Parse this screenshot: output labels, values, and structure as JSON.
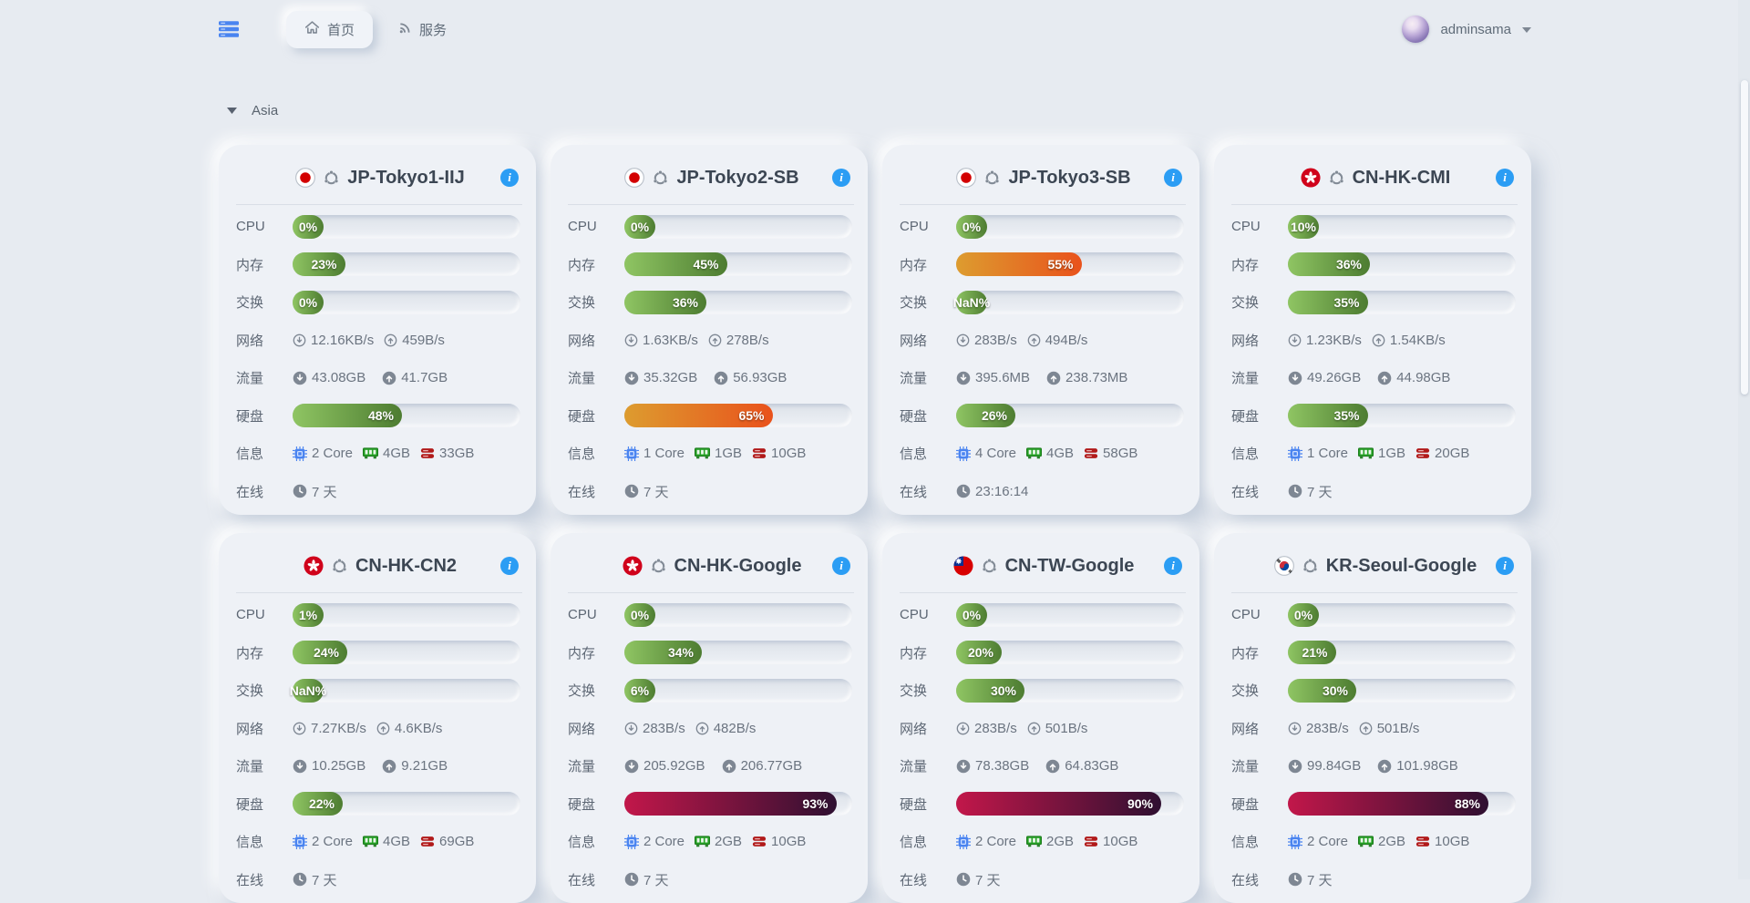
{
  "topbar": {
    "tabs": [
      {
        "label": "首页",
        "active": true
      },
      {
        "label": "服务",
        "active": false
      }
    ],
    "user": {
      "name": "adminsama"
    }
  },
  "section": {
    "title": "Asia"
  },
  "labels": {
    "cpu": "CPU",
    "memory": "内存",
    "swap": "交换",
    "network": "网络",
    "traffic": "流量",
    "disk": "硬盘",
    "info": "信息",
    "online": "在线"
  },
  "colors": {
    "accent_blue": "#2b9df4",
    "bar_green": "#4d7c31",
    "bar_orange": "#e9521c",
    "bar_red": "#c2174a",
    "cpu_chip_icon": "#4a84f0",
    "ram_icon": "#27a327",
    "disk_icon": "#b11a1a"
  },
  "servers": [
    {
      "name": "JP-Tokyo1-IIJ",
      "flag": "jp",
      "os": "ubuntu",
      "cpu": {
        "pct": 0,
        "label": "0%"
      },
      "memory": {
        "pct": 23,
        "label": "23%"
      },
      "swap": {
        "pct": 0,
        "label": "0%"
      },
      "network": {
        "down": "12.16KB/s",
        "up": "459B/s"
      },
      "traffic": {
        "down": "43.08GB",
        "up": "41.7GB"
      },
      "disk": {
        "pct": 48,
        "label": "48%"
      },
      "info": {
        "cpu": "2 Core",
        "ram": "4GB",
        "disk": "33GB"
      },
      "online": "7 天"
    },
    {
      "name": "JP-Tokyo2-SB",
      "flag": "jp",
      "os": "ubuntu",
      "cpu": {
        "pct": 0,
        "label": "0%"
      },
      "memory": {
        "pct": 45,
        "label": "45%"
      },
      "swap": {
        "pct": 36,
        "label": "36%"
      },
      "network": {
        "down": "1.63KB/s",
        "up": "278B/s"
      },
      "traffic": {
        "down": "35.32GB",
        "up": "56.93GB"
      },
      "disk": {
        "pct": 65,
        "label": "65%"
      },
      "info": {
        "cpu": "1 Core",
        "ram": "1GB",
        "disk": "10GB"
      },
      "online": "7 天"
    },
    {
      "name": "JP-Tokyo3-SB",
      "flag": "jp",
      "os": "ubuntu",
      "cpu": {
        "pct": 0,
        "label": "0%"
      },
      "memory": {
        "pct": 55,
        "label": "55%"
      },
      "swap": {
        "pct": null,
        "label": "NaN%"
      },
      "network": {
        "down": "283B/s",
        "up": "494B/s"
      },
      "traffic": {
        "down": "395.6MB",
        "up": "238.73MB"
      },
      "disk": {
        "pct": 26,
        "label": "26%"
      },
      "info": {
        "cpu": "4 Core",
        "ram": "4GB",
        "disk": "58GB"
      },
      "online": "23:16:14"
    },
    {
      "name": "CN-HK-CMI",
      "flag": "hk",
      "os": "ubuntu",
      "cpu": {
        "pct": 10,
        "label": "10%"
      },
      "memory": {
        "pct": 36,
        "label": "36%"
      },
      "swap": {
        "pct": 35,
        "label": "35%"
      },
      "network": {
        "down": "1.23KB/s",
        "up": "1.54KB/s"
      },
      "traffic": {
        "down": "49.26GB",
        "up": "44.98GB"
      },
      "disk": {
        "pct": 35,
        "label": "35%"
      },
      "info": {
        "cpu": "1 Core",
        "ram": "1GB",
        "disk": "20GB"
      },
      "online": "7 天"
    },
    {
      "name": "CN-HK-CN2",
      "flag": "hk",
      "os": "ubuntu",
      "cpu": {
        "pct": 1,
        "label": "1%"
      },
      "memory": {
        "pct": 24,
        "label": "24%"
      },
      "swap": {
        "pct": null,
        "label": "NaN%"
      },
      "network": {
        "down": "7.27KB/s",
        "up": "4.6KB/s"
      },
      "traffic": {
        "down": "10.25GB",
        "up": "9.21GB"
      },
      "disk": {
        "pct": 22,
        "label": "22%"
      },
      "info": {
        "cpu": "2 Core",
        "ram": "4GB",
        "disk": "69GB"
      },
      "online": "7 天"
    },
    {
      "name": "CN-HK-Google",
      "flag": "hk",
      "os": "ubuntu",
      "cpu": {
        "pct": 0,
        "label": "0%"
      },
      "memory": {
        "pct": 34,
        "label": "34%"
      },
      "swap": {
        "pct": 6,
        "label": "6%"
      },
      "network": {
        "down": "283B/s",
        "up": "482B/s"
      },
      "traffic": {
        "down": "205.92GB",
        "up": "206.77GB"
      },
      "disk": {
        "pct": 93,
        "label": "93%"
      },
      "info": {
        "cpu": "2 Core",
        "ram": "2GB",
        "disk": "10GB"
      },
      "online": "7 天"
    },
    {
      "name": "CN-TW-Google",
      "flag": "tw",
      "os": "ubuntu",
      "cpu": {
        "pct": 0,
        "label": "0%"
      },
      "memory": {
        "pct": 20,
        "label": "20%"
      },
      "swap": {
        "pct": 30,
        "label": "30%"
      },
      "network": {
        "down": "283B/s",
        "up": "501B/s"
      },
      "traffic": {
        "down": "78.38GB",
        "up": "64.83GB"
      },
      "disk": {
        "pct": 90,
        "label": "90%"
      },
      "info": {
        "cpu": "2 Core",
        "ram": "2GB",
        "disk": "10GB"
      },
      "online": "7 天"
    },
    {
      "name": "KR-Seoul-Google",
      "flag": "kr",
      "os": "ubuntu",
      "cpu": {
        "pct": 0,
        "label": "0%"
      },
      "memory": {
        "pct": 21,
        "label": "21%"
      },
      "swap": {
        "pct": 30,
        "label": "30%"
      },
      "network": {
        "down": "283B/s",
        "up": "501B/s"
      },
      "traffic": {
        "down": "99.84GB",
        "up": "101.98GB"
      },
      "disk": {
        "pct": 88,
        "label": "88%"
      },
      "info": {
        "cpu": "2 Core",
        "ram": "2GB",
        "disk": "10GB"
      },
      "online": "7 天"
    }
  ]
}
